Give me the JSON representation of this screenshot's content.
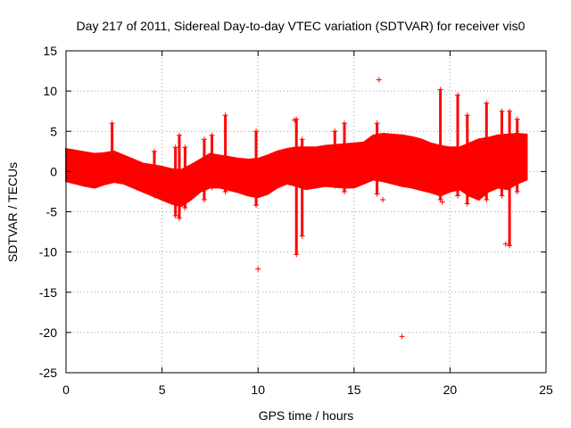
{
  "chart_data": {
    "type": "scatter",
    "title": "Day 217 of 2011, Sidereal Day-to-day VTEC variation (SDTVAR) for receiver vis0",
    "xlabel": "GPS time / hours",
    "ylabel": "SDTVAR / TECUs",
    "xlim": [
      0,
      25
    ],
    "ylim": [
      -25,
      15
    ],
    "xticks": [
      0,
      5,
      10,
      15,
      20,
      25
    ],
    "yticks": [
      -25,
      -20,
      -15,
      -10,
      -5,
      0,
      5,
      10,
      15
    ],
    "grid": true,
    "marker": "plus",
    "series_color": "#ff0000",
    "band": {
      "x": [
        0,
        0.5,
        1,
        1.5,
        2,
        2.5,
        3,
        3.5,
        4,
        4.5,
        5,
        5.5,
        6,
        6.5,
        7,
        7.5,
        8,
        8.5,
        9,
        9.5,
        10,
        10.5,
        11,
        11.5,
        12,
        12.5,
        13,
        13.5,
        14,
        14.5,
        15,
        15.5,
        16,
        16.5,
        17,
        17.5,
        18,
        18.5,
        19,
        19.5,
        20,
        20.5,
        21,
        21.5,
        22,
        22.5,
        23,
        23.5,
        24
      ],
      "upper": [
        2.8,
        2.6,
        2.4,
        2.2,
        2.3,
        2.5,
        2.0,
        1.5,
        1.0,
        0.8,
        0.6,
        0.3,
        0.2,
        0.8,
        1.5,
        2.2,
        2.0,
        1.8,
        1.6,
        1.5,
        1.6,
        2.0,
        2.5,
        2.8,
        3.0,
        3.0,
        3.0,
        3.2,
        3.3,
        3.4,
        3.5,
        3.6,
        4.5,
        4.7,
        4.6,
        4.5,
        4.3,
        4.0,
        3.5,
        3.2,
        3.0,
        3.0,
        3.5,
        4.0,
        4.2,
        4.5,
        4.6,
        4.7,
        4.6
      ],
      "lower": [
        -1.2,
        -1.5,
        -1.8,
        -2.0,
        -1.6,
        -1.3,
        -1.5,
        -2.0,
        -2.5,
        -3.0,
        -3.5,
        -4.0,
        -4.3,
        -3.5,
        -2.5,
        -2.0,
        -2.0,
        -2.3,
        -2.6,
        -3.0,
        -3.2,
        -2.8,
        -2.0,
        -1.5,
        -1.8,
        -2.2,
        -2.0,
        -1.8,
        -1.9,
        -2.0,
        -2.0,
        -1.5,
        -1.0,
        -1.2,
        -1.5,
        -1.8,
        -2.0,
        -2.3,
        -2.6,
        -3.0,
        -2.5,
        -2.2,
        -3.0,
        -3.5,
        -2.5,
        -2.0,
        -2.2,
        -1.5,
        -1.0
      ]
    },
    "spikes": [
      {
        "x": 2.4,
        "y1": 6.0,
        "y2": -0.5
      },
      {
        "x": 4.6,
        "y1": 2.5,
        "y2": -3.0
      },
      {
        "x": 5.7,
        "y1": 3.0,
        "y2": -5.5
      },
      {
        "x": 5.9,
        "y1": 4.5,
        "y2": -5.8
      },
      {
        "x": 6.2,
        "y1": 3.0,
        "y2": -4.5
      },
      {
        "x": 7.2,
        "y1": 4.0,
        "y2": -3.5
      },
      {
        "x": 7.6,
        "y1": 4.5,
        "y2": -2.0
      },
      {
        "x": 8.3,
        "y1": 7.0,
        "y2": -2.5
      },
      {
        "x": 9.9,
        "y1": 5.0,
        "y2": -4.2
      },
      {
        "x": 12.0,
        "y1": 6.5,
        "y2": -10.3
      },
      {
        "x": 12.3,
        "y1": 4.0,
        "y2": -8.0
      },
      {
        "x": 14.0,
        "y1": 5.0,
        "y2": -1.8
      },
      {
        "x": 14.5,
        "y1": 6.0,
        "y2": -2.5
      },
      {
        "x": 16.2,
        "y1": 6.0,
        "y2": -2.8
      },
      {
        "x": 19.5,
        "y1": 10.2,
        "y2": -3.5
      },
      {
        "x": 20.4,
        "y1": 9.5,
        "y2": -3.0
      },
      {
        "x": 20.9,
        "y1": 7.0,
        "y2": -4.0
      },
      {
        "x": 21.9,
        "y1": 8.5,
        "y2": -3.5
      },
      {
        "x": 22.7,
        "y1": 7.5,
        "y2": -3.0
      },
      {
        "x": 23.1,
        "y1": 7.5,
        "y2": -9.2
      },
      {
        "x": 23.5,
        "y1": 6.5,
        "y2": -2.5
      }
    ],
    "outliers": [
      {
        "x": 10.0,
        "y": -12.1
      },
      {
        "x": 16.3,
        "y": 11.4
      },
      {
        "x": 16.5,
        "y": -3.5
      },
      {
        "x": 17.5,
        "y": -20.5
      },
      {
        "x": 11.9,
        "y": 6.4
      },
      {
        "x": 19.6,
        "y": -3.8
      },
      {
        "x": 22.9,
        "y": -9.0
      }
    ]
  }
}
